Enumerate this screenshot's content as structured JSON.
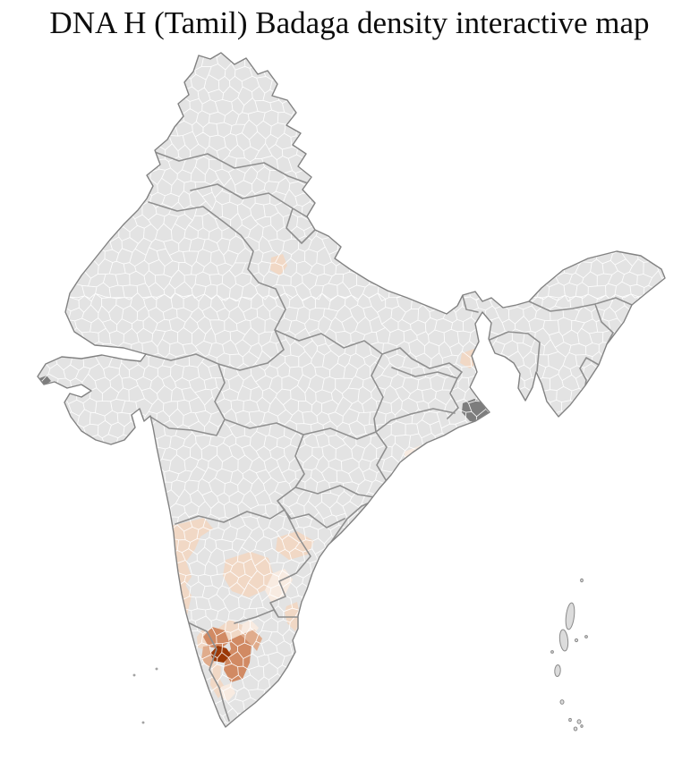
{
  "title": "DNA H (Tamil) Badaga density interactive map",
  "map": {
    "background_color": "#ffffff",
    "land_fill": "#e3e3e3",
    "district_border_color": "#ffffff",
    "state_border_color": "#8f8f8f",
    "country_outline_color": "#828282",
    "island_fill": "#dcdcdc",
    "island_outline_color": "#8a8a8a",
    "dark_district_fill": "#7d7d7d",
    "density_scale": {
      "none": "#e3e3e3",
      "very_low": "#f8ebe1",
      "low": "#f1d8c5",
      "medium": "#e0ac8c",
      "high": "#d18a63",
      "highest": "#9c3a08"
    },
    "shaded_districts": [
      {
        "name": "nw-karnataka-band",
        "level": "low"
      },
      {
        "name": "coastal-karnataka",
        "level": "low"
      },
      {
        "name": "rayalaseema-cluster",
        "level": "low"
      },
      {
        "name": "rayalaseema-east",
        "level": "very_low"
      },
      {
        "name": "coastal-andhra",
        "level": "low"
      },
      {
        "name": "chennai-coast-strip",
        "level": "low"
      },
      {
        "name": "bangalore-fringe",
        "level": "very_low"
      },
      {
        "name": "mandya",
        "level": "low"
      },
      {
        "name": "kodagu",
        "level": "low"
      },
      {
        "name": "palakkad-kerala",
        "level": "low"
      },
      {
        "name": "south-tn-fringe",
        "level": "very_low"
      },
      {
        "name": "uttar-pradesh-district",
        "level": "low"
      },
      {
        "name": "north-bengal-district",
        "level": "low"
      },
      {
        "name": "odisha-coast-district",
        "level": "very_low"
      },
      {
        "name": "gudalur-fringe",
        "level": "medium"
      },
      {
        "name": "erode",
        "level": "medium"
      },
      {
        "name": "mysore",
        "level": "high"
      },
      {
        "name": "coimbatore",
        "level": "high"
      },
      {
        "name": "nilgiris",
        "level": "highest"
      }
    ],
    "dark_features": [
      "sundarbans-district",
      "kutch-coast-spot"
    ],
    "island_groups": [
      "andaman-nicobar-islands",
      "lakshadweep-islands"
    ]
  }
}
